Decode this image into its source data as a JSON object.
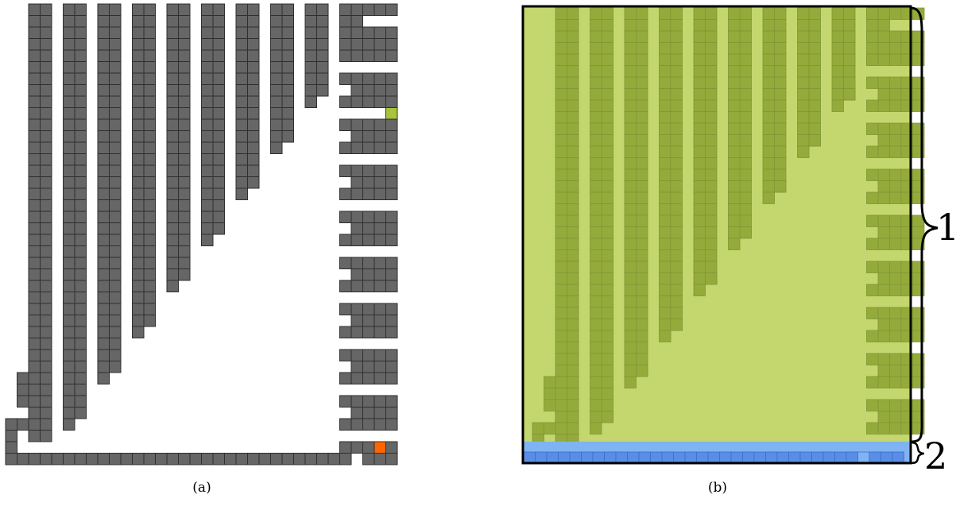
{
  "captions": {
    "a": "(a)",
    "b": "(b)"
  },
  "regions": {
    "label_1": "1",
    "label_2": "2"
  },
  "colors": {
    "tile_gray": "#666666",
    "tile_stroke": "#2f2f2f",
    "orange_tile": "#ff6600",
    "green_tile": "#a8c43c",
    "region1_fill": "#c4d66e",
    "region1_tile": "#94ab3c",
    "region1_tile_stroke": "#7f9634",
    "region2_light": "#80b3f2",
    "region2_tile": "#5a8ee6",
    "region2_tile_stroke": "#3d6ec9"
  }
}
